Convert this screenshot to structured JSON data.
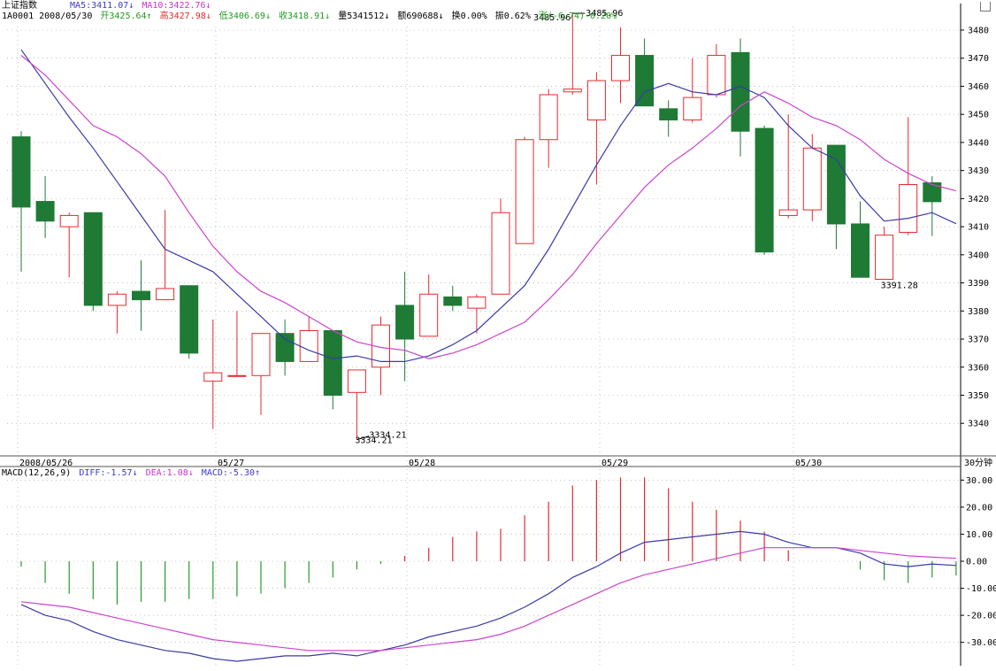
{
  "header": {
    "index_name": "上证指数",
    "ma5_label": "MA5:3411.07↓",
    "ma10_label": "MA10:3422.76↓",
    "code_date": "1A0001 2008/05/30",
    "open": "开3425.64↑",
    "high": "高3427.98↓",
    "low": "低3406.69↓",
    "close": "收3418.91↓",
    "volume": "量5341512↓",
    "amount": "额690688↓",
    "turnover": "换0.00%",
    "amplitude": "振0.62%",
    "change": "涨(-6.74)-0.20%"
  },
  "macd_header": {
    "name": "MACD(12,26,9)",
    "diff": "DIFF:-1.57↓",
    "dea": "DEA:1.08↓",
    "macd": "MACD:-5.30↑"
  },
  "colors": {
    "up": "#e8282d",
    "down": "#1e7a34",
    "ma5": "#3a3aa8",
    "ma10": "#cc44cc",
    "grid": "#9a9a9a"
  },
  "chart_data": [
    {
      "type": "candlestick",
      "period_label": "30分钟",
      "x_labels": [
        "2008/05/26",
        "05/27",
        "05/28",
        "05/29",
        "05/30"
      ],
      "y_ticks": [
        3340,
        3350,
        3360,
        3370,
        3380,
        3390,
        3400,
        3410,
        3420,
        3430,
        3440,
        3450,
        3460,
        3470,
        3480
      ],
      "ylim": [
        3331,
        3488
      ],
      "candles": [
        {
          "o": 3442,
          "h": 3444,
          "l": 3394,
          "c": 3417
        },
        {
          "o": 3419,
          "h": 3428,
          "l": 3406,
          "c": 3412
        },
        {
          "o": 3410,
          "h": 3415,
          "l": 3392,
          "c": 3414
        },
        {
          "o": 3415,
          "h": 3415,
          "l": 3380,
          "c": 3382
        },
        {
          "o": 3382,
          "h": 3387,
          "l": 3372,
          "c": 3386
        },
        {
          "o": 3387,
          "h": 3398,
          "l": 3373,
          "c": 3384
        },
        {
          "o": 3384,
          "h": 3416,
          "l": 3384,
          "c": 3388
        },
        {
          "o": 3389,
          "h": 3389,
          "l": 3363,
          "c": 3365
        },
        {
          "o": 3355,
          "h": 3377,
          "l": 3338,
          "c": 3358
        },
        {
          "o": 3357,
          "h": 3380,
          "l": 3357,
          "c": 3357
        },
        {
          "o": 3357,
          "h": 3372,
          "l": 3343,
          "c": 3372
        },
        {
          "o": 3372,
          "h": 3377,
          "l": 3357,
          "c": 3362
        },
        {
          "o": 3362,
          "h": 3378,
          "l": 3362,
          "c": 3373
        },
        {
          "o": 3373,
          "h": 3373,
          "l": 3345,
          "c": 3350
        },
        {
          "o": 3351,
          "h": 3359,
          "l": 3334.21,
          "c": 3359
        },
        {
          "o": 3360,
          "h": 3378,
          "l": 3350,
          "c": 3375
        },
        {
          "o": 3382,
          "h": 3394,
          "l": 3355,
          "c": 3370
        },
        {
          "o": 3371,
          "h": 3393,
          "l": 3371,
          "c": 3386
        },
        {
          "o": 3385,
          "h": 3389,
          "l": 3380,
          "c": 3382
        },
        {
          "o": 3381,
          "h": 3386,
          "l": 3372,
          "c": 3385
        },
        {
          "o": 3386,
          "h": 3420,
          "l": 3386,
          "c": 3415
        },
        {
          "o": 3404,
          "h": 3442,
          "l": 3404,
          "c": 3441
        },
        {
          "o": 3441,
          "h": 3459,
          "l": 3431,
          "c": 3457
        },
        {
          "o": 3458,
          "h": 3485.96,
          "l": 3457,
          "c": 3459
        },
        {
          "o": 3448,
          "h": 3465,
          "l": 3425,
          "c": 3462
        },
        {
          "o": 3462,
          "h": 3481,
          "l": 3454,
          "c": 3471
        },
        {
          "o": 3471,
          "h": 3477,
          "l": 3453,
          "c": 3453
        },
        {
          "o": 3452,
          "h": 3455,
          "l": 3442,
          "c": 3448
        },
        {
          "o": 3448,
          "h": 3470,
          "l": 3447,
          "c": 3456
        },
        {
          "o": 3457,
          "h": 3475,
          "l": 3456,
          "c": 3471
        },
        {
          "o": 3472,
          "h": 3477,
          "l": 3435,
          "c": 3444
        },
        {
          "o": 3445,
          "h": 3446,
          "l": 3400,
          "c": 3401
        },
        {
          "o": 3414,
          "h": 3450,
          "l": 3413,
          "c": 3416
        },
        {
          "o": 3416,
          "h": 3443,
          "l": 3412,
          "c": 3438
        },
        {
          "o": 3439,
          "h": 3439,
          "l": 3402,
          "c": 3411
        },
        {
          "o": 3411,
          "h": 3419,
          "l": 3392,
          "c": 3392
        },
        {
          "o": 3391.28,
          "h": 3410,
          "l": 3391.28,
          "c": 3407
        },
        {
          "o": 3408,
          "h": 3449,
          "l": 3407,
          "c": 3425
        },
        {
          "o": 3425.64,
          "h": 3427.98,
          "l": 3406.69,
          "c": 3418.91
        }
      ],
      "ma5": [
        3473,
        3461,
        3449,
        3438,
        3426,
        3414,
        3402,
        3398,
        3394,
        3386,
        3378,
        3370,
        3366,
        3363,
        3364,
        3362,
        3362,
        3364,
        3368,
        3373,
        3381,
        3389,
        3402,
        3417,
        3432,
        3446,
        3458,
        3461,
        3458,
        3457,
        3460,
        3456,
        3446,
        3438,
        3434,
        3421,
        3412,
        3413,
        3415,
        3411.07
      ],
      "ma10": [
        3471,
        3464,
        3455,
        3446,
        3442,
        3436,
        3428,
        3415,
        3403,
        3394,
        3387,
        3383,
        3378,
        3373,
        3369,
        3367,
        3366,
        3363,
        3365,
        3368,
        3372,
        3376,
        3384,
        3393,
        3404,
        3414,
        3424,
        3432,
        3438,
        3445,
        3453,
        3458,
        3454,
        3449,
        3446,
        3441,
        3434,
        3429,
        3425,
        3422.76
      ],
      "annotations": [
        "3485.96",
        "3334.21",
        "3391.28"
      ]
    },
    {
      "type": "bar+line",
      "name": "MACD(12,26,9)",
      "y_ticks": [
        -30,
        -20,
        -10,
        0,
        10,
        20,
        30
      ],
      "ylim": [
        -38,
        31
      ],
      "macd": [
        -2,
        -8,
        -12,
        -14,
        -16,
        -15,
        -15,
        -14,
        -14,
        -13,
        -12,
        -10,
        -8,
        -6,
        -3,
        -1,
        2,
        5,
        9,
        11,
        12,
        17,
        22,
        28,
        30,
        31,
        31,
        27,
        22,
        19,
        15,
        11,
        4,
        0,
        0,
        -3,
        -7,
        -8,
        -6,
        -5.3
      ],
      "diff": [
        -16,
        -20,
        -22,
        -26,
        -29,
        -31,
        -33,
        -34,
        -36,
        -37,
        -36,
        -35,
        -35,
        -34,
        -35,
        -33,
        -31,
        -28,
        -26,
        -24,
        -21,
        -17,
        -12,
        -6,
        -2,
        3,
        7,
        8,
        9,
        10,
        11,
        10,
        7,
        5,
        5,
        3,
        -1,
        -2,
        -1,
        -1.57
      ],
      "dea": [
        -15,
        -16,
        -17,
        -19,
        -21,
        -23,
        -25,
        -27,
        -29,
        -30,
        -31,
        -32,
        -33,
        -33,
        -33,
        -33,
        -32,
        -31,
        -30,
        -29,
        -27,
        -24,
        -20,
        -16,
        -12,
        -8,
        -5,
        -3,
        -1,
        1,
        3,
        5,
        5,
        5,
        5,
        4,
        3,
        2,
        1.5,
        1.08
      ]
    }
  ]
}
